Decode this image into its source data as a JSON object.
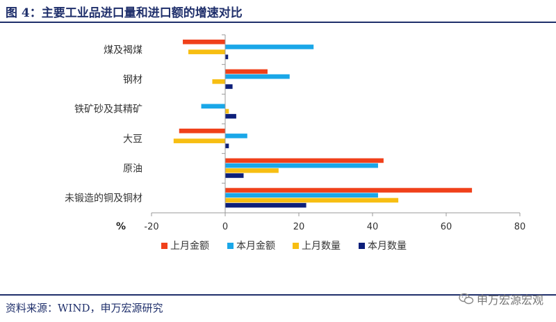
{
  "header": {
    "title": "图 4：主要工业品进口量和进口额的增速对比"
  },
  "footer": {
    "source": "资料来源：WIND，申万宏源研究",
    "watermark": "申万宏源宏观"
  },
  "chart_data": {
    "type": "bar",
    "orientation": "horizontal",
    "unit_label": "%",
    "categories": [
      "煤及褐煤",
      "钢材",
      "铁矿砂及其精矿",
      "大豆",
      "原油",
      "未锻造的铜及铜材"
    ],
    "series": [
      {
        "name": "上月金额",
        "color": "#f0401a",
        "values": [
          -11.5,
          11.5,
          0,
          -12.5,
          43,
          67
        ]
      },
      {
        "name": "本月金额",
        "color": "#1aa7e8",
        "values": [
          24,
          17.5,
          -6.5,
          6,
          41.5,
          41.5
        ]
      },
      {
        "name": "上月数量",
        "color": "#f7be12",
        "values": [
          -10,
          -3.5,
          1,
          -14,
          14.5,
          47
        ]
      },
      {
        "name": "本月数量",
        "color": "#0d1f7a",
        "values": [
          0.8,
          2,
          3,
          1,
          5,
          22
        ]
      }
    ],
    "xlim": [
      -20,
      80
    ],
    "xticks": [
      -20,
      0,
      20,
      40,
      60,
      80
    ],
    "legend_position": "bottom",
    "grid": false
  }
}
